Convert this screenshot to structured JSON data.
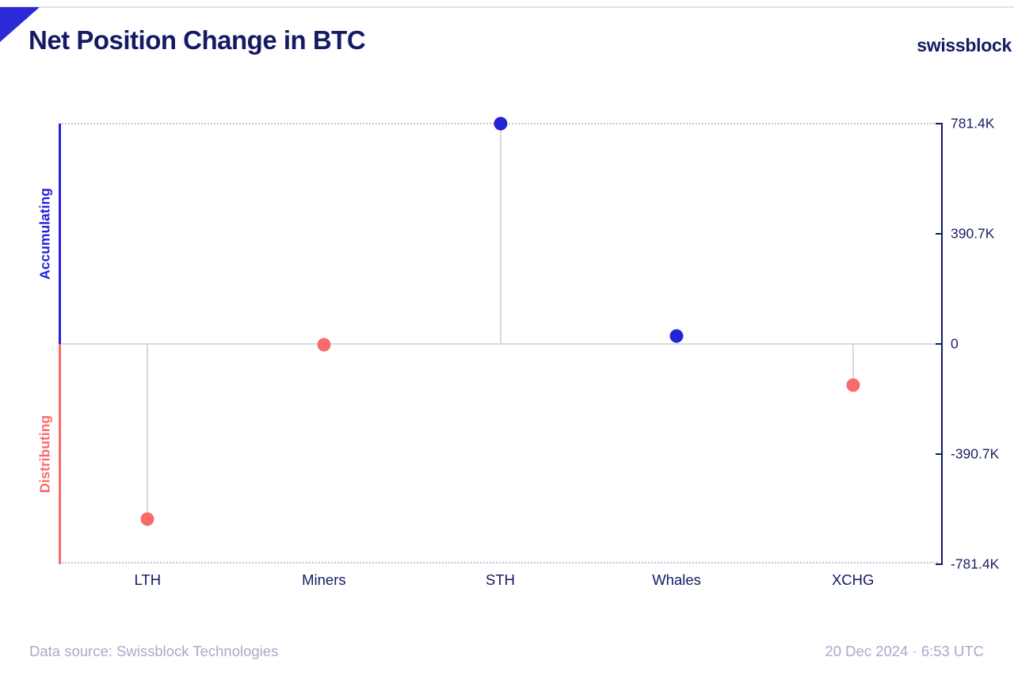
{
  "header": {
    "title": "Net Position Change in BTC",
    "brand": "swissblock"
  },
  "chart_data": {
    "type": "lollipop",
    "title": "Net Position Change in BTC",
    "categories": [
      "LTH",
      "Miners",
      "STH",
      "Whales",
      "XCHG"
    ],
    "values": [
      -622000,
      -2000,
      781400,
      28000,
      -145000
    ],
    "unit": "BTC",
    "ylim": [
      -781400,
      781400
    ],
    "yticks": [
      {
        "value": 781400,
        "label": "781.4K"
      },
      {
        "value": 390700,
        "label": "390.7K"
      },
      {
        "value": 0,
        "label": "0"
      },
      {
        "value": -390700,
        "label": "-390.7K"
      },
      {
        "value": -781400,
        "label": "-781.4K"
      }
    ],
    "side_labels": {
      "positive": "Accumulating",
      "negative": "Distributing"
    },
    "colors": {
      "positive": "#2422d6",
      "negative": "#f96a6a"
    },
    "grid": "dotted lines at ylim extremes, solid zero baseline",
    "legend": "none"
  },
  "footer": {
    "source": "Data source: Swissblock Technologies",
    "timestamp": "20 Dec 2024 · 6:53 UTC"
  }
}
